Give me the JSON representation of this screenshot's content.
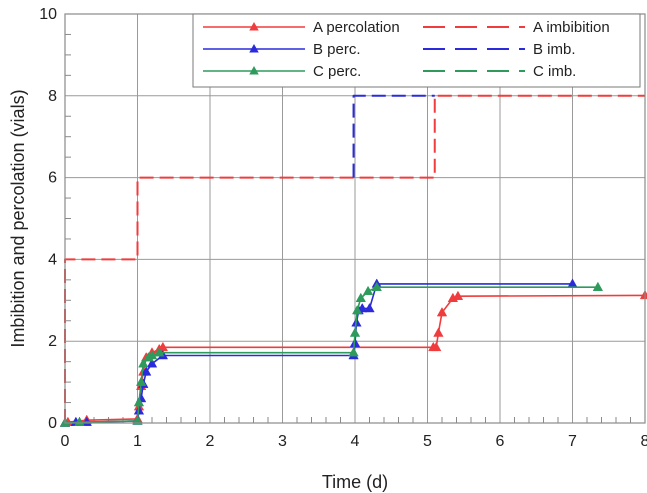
{
  "chart_data": {
    "type": "line",
    "xlabel": "Time (d)",
    "ylabel": "Imbibition and percolation (vials)",
    "xlim": [
      0,
      8
    ],
    "ylim": [
      0,
      10
    ],
    "xticks": [
      "0",
      "1",
      "2",
      "3",
      "4",
      "5",
      "6",
      "7",
      "8"
    ],
    "yticks": [
      "0",
      "2",
      "4",
      "6",
      "8",
      "10"
    ],
    "grid": true,
    "legend_position": "top-right",
    "series": [
      {
        "name": "A percolation",
        "color": "#f03c3c",
        "style": "solid",
        "marker": "triangle",
        "x": [
          0,
          0.04,
          0.3,
          1.0,
          1.02,
          1.05,
          1.08,
          1.12,
          1.2,
          1.3,
          1.35,
          5.08,
          5.12,
          5.15,
          5.2,
          5.35,
          5.42,
          8.0
        ],
        "y": [
          0,
          0.02,
          0.07,
          0.1,
          0.4,
          0.9,
          1.25,
          1.6,
          1.72,
          1.8,
          1.85,
          1.85,
          1.85,
          2.2,
          2.7,
          3.05,
          3.1,
          3.12
        ]
      },
      {
        "name": "A imbibition",
        "color": "#f03c3c",
        "style": "dashed",
        "marker": "none",
        "x": [
          0,
          0,
          1.0,
          1.0,
          5.1,
          5.1,
          8.0
        ],
        "y": [
          0,
          4,
          4,
          6,
          6,
          8,
          8
        ]
      },
      {
        "name": "B perc.",
        "color": "#2b2bdc",
        "style": "solid",
        "marker": "triangle",
        "x": [
          0,
          0.15,
          0.3,
          1.0,
          1.02,
          1.05,
          1.08,
          1.12,
          1.2,
          1.35,
          3.98,
          4.0,
          4.02,
          4.05,
          4.1,
          4.2,
          4.3,
          7.0
        ],
        "y": [
          0,
          0.02,
          0.02,
          0.05,
          0.3,
          0.6,
          0.95,
          1.25,
          1.45,
          1.65,
          1.65,
          1.95,
          2.45,
          2.75,
          2.8,
          2.8,
          3.4,
          3.4
        ]
      },
      {
        "name": "B imb.",
        "color": "#2b2bdc",
        "style": "dashed",
        "marker": "none",
        "x": [
          3.98,
          3.98,
          5.1
        ],
        "y": [
          6,
          8,
          8
        ]
      },
      {
        "name": "C perc.",
        "color": "#2e9b5c",
        "style": "solid",
        "marker": "triangle",
        "x": [
          0,
          0.2,
          1.0,
          1.02,
          1.05,
          1.08,
          1.15,
          1.2,
          1.3,
          3.98,
          4.0,
          4.03,
          4.08,
          4.18,
          4.3,
          7.35
        ],
        "y": [
          0,
          0.02,
          0.05,
          0.5,
          1.0,
          1.45,
          1.6,
          1.65,
          1.72,
          1.72,
          2.2,
          2.75,
          3.05,
          3.22,
          3.32,
          3.32
        ]
      },
      {
        "name": "C imb.",
        "color": "#2e9b5c",
        "style": "dashed",
        "marker": "none",
        "x": [],
        "y": []
      }
    ]
  }
}
